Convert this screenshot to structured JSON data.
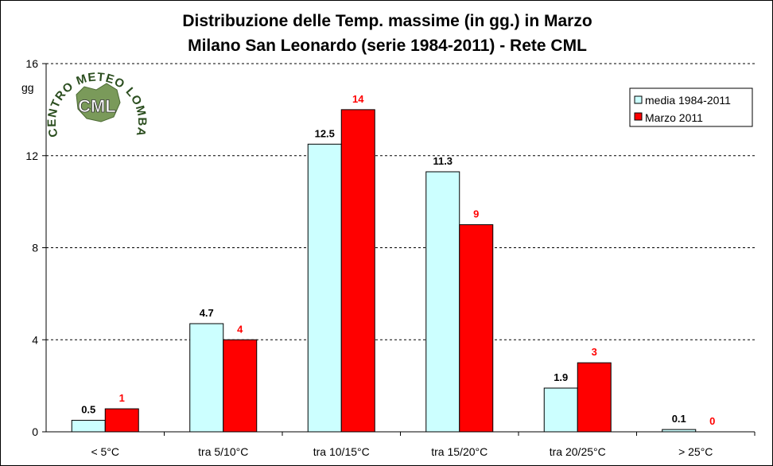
{
  "chart_data": {
    "type": "bar",
    "title": "Distribuzione delle Temp. massime (in gg.) in Marzo",
    "subtitle": "Milano San Leonardo (serie 1984-2011) - Rete CML",
    "ylabel": "gg",
    "xlabel": "",
    "ylim": [
      0,
      16
    ],
    "yticks": [
      0,
      4,
      8,
      12,
      16
    ],
    "grid": true,
    "legend": "top-right",
    "categories": [
      "< 5°C",
      "tra 5/10°C",
      "tra 10/15°C",
      "tra 15/20°C",
      "tra 20/25°C",
      "> 25°C"
    ],
    "series": [
      {
        "name": "media 1984-2011",
        "values": [
          0.5,
          4.7,
          12.5,
          11.3,
          1.9,
          0.1
        ],
        "labels": [
          "0.5",
          "4.7",
          "12.5",
          "11.3",
          "1.9",
          "0.1"
        ],
        "color": "#ccffff",
        "label_color": "#000000"
      },
      {
        "name": "Marzo 2011",
        "values": [
          1,
          4,
          14,
          9,
          3,
          0
        ],
        "labels": [
          "1",
          "4",
          "14",
          "9",
          "3",
          "0"
        ],
        "color": "#ff0000",
        "label_color": "#ff0000"
      }
    ]
  },
  "logo": {
    "arc_text": "CENTRO METEO LOMBARDO",
    "center_text": "CML"
  }
}
